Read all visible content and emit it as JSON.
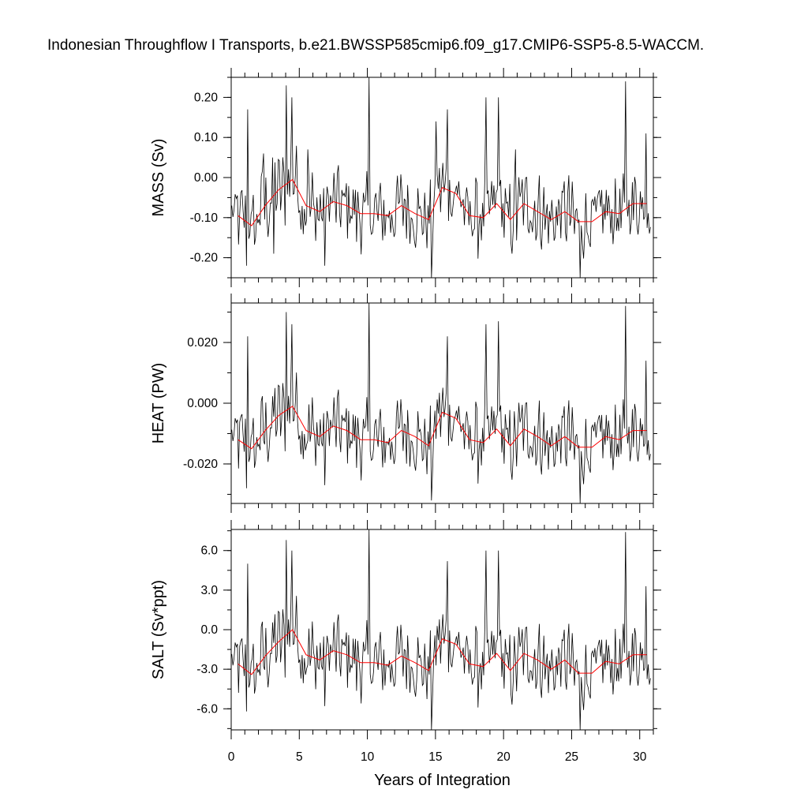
{
  "title": "Indonesian Throughflow I Transports, b.e21.BWSSP585cmip6.f09_g17.CMIP6-SSP5-8.5-WACCM.",
  "colors": {
    "monthly": "#000000",
    "annual": "#ff0000"
  },
  "chart_data": [
    {
      "type": "line",
      "ylabel": "MASS (Sv)",
      "xlabel": "",
      "xlim": [
        0,
        31
      ],
      "ylim": [
        -0.25,
        0.25
      ],
      "yticks": [
        0.2,
        0.1,
        0.0,
        -0.1,
        -0.2
      ],
      "ytick_labels": [
        "0.20",
        "0.10",
        "0.00",
        "-0.10",
        "-0.20"
      ],
      "xticks": [
        0,
        5,
        10,
        15,
        20,
        25,
        30
      ],
      "annual_mean": [
        -0.095,
        -0.12,
        -0.07,
        -0.03,
        -0.005,
        -0.07,
        -0.085,
        -0.06,
        -0.07,
        -0.09,
        -0.09,
        -0.095,
        -0.07,
        -0.09,
        -0.105,
        -0.025,
        -0.04,
        -0.095,
        -0.1,
        -0.065,
        -0.105,
        -0.065,
        -0.085,
        -0.105,
        -0.085,
        -0.11,
        -0.11,
        -0.085,
        -0.09,
        -0.065,
        -0.065
      ],
      "peaks": [
        [
          0.6,
          -0.09
        ],
        [
          1.2,
          0.17
        ],
        [
          2.3,
          0.06
        ],
        [
          3.0,
          0.05
        ],
        [
          4.0,
          0.23
        ],
        [
          4.4,
          0.2
        ],
        [
          5.6,
          0.07
        ],
        [
          10.1,
          0.26
        ],
        [
          15.0,
          0.14
        ],
        [
          15.8,
          0.17
        ],
        [
          18.7,
          0.2
        ],
        [
          19.6,
          0.2
        ],
        [
          20.8,
          0.07
        ],
        [
          28.9,
          0.24
        ],
        [
          30.4,
          0.11
        ]
      ],
      "troughs": [
        [
          1.1,
          -0.22
        ],
        [
          3.1,
          -0.19
        ],
        [
          6.8,
          -0.22
        ],
        [
          14.7,
          -0.26
        ],
        [
          25.6,
          -0.26
        ]
      ]
    },
    {
      "type": "line",
      "ylabel": "HEAT (PW)",
      "xlabel": "",
      "xlim": [
        0,
        31
      ],
      "ylim": [
        -0.033,
        0.033
      ],
      "yticks": [
        0.02,
        0.0,
        -0.02
      ],
      "ytick_labels": [
        "0.020",
        "0.000",
        "-0.020"
      ],
      "xticks": [
        0,
        5,
        10,
        15,
        20,
        25,
        30
      ],
      "annual_mean": [
        -0.012,
        -0.015,
        -0.009,
        -0.004,
        -0.001,
        -0.009,
        -0.011,
        -0.0075,
        -0.009,
        -0.012,
        -0.012,
        -0.013,
        -0.009,
        -0.011,
        -0.014,
        -0.003,
        -0.005,
        -0.012,
        -0.013,
        -0.0085,
        -0.014,
        -0.0085,
        -0.011,
        -0.014,
        -0.011,
        -0.0145,
        -0.0145,
        -0.011,
        -0.012,
        -0.009,
        -0.009
      ],
      "peaks": [
        [
          1.2,
          0.022
        ],
        [
          4.0,
          0.03
        ],
        [
          4.4,
          0.026
        ],
        [
          10.1,
          0.034
        ],
        [
          15.8,
          0.022
        ],
        [
          18.7,
          0.026
        ],
        [
          19.6,
          0.027
        ],
        [
          28.9,
          0.032
        ],
        [
          30.4,
          0.014
        ]
      ],
      "troughs": [
        [
          1.1,
          -0.028
        ],
        [
          6.8,
          -0.027
        ],
        [
          14.7,
          -0.032
        ],
        [
          25.6,
          -0.033
        ]
      ]
    },
    {
      "type": "line",
      "ylabel": "SALT (Sv*ppt)",
      "xlabel": "Years of Integration",
      "xlim": [
        0,
        31
      ],
      "ylim": [
        -7.6,
        7.6
      ],
      "yticks": [
        6.0,
        3.0,
        0.0,
        -3.0,
        -6.0
      ],
      "ytick_labels": [
        "6.0",
        "3.0",
        "0.0",
        "-3.0",
        "-6.0"
      ],
      "xticks": [
        0,
        5,
        10,
        15,
        20,
        25,
        30
      ],
      "xtick_labels": [
        "0",
        "5",
        "10",
        "15",
        "20",
        "25",
        "30"
      ],
      "annual_mean": [
        -2.6,
        -3.4,
        -2.0,
        -0.9,
        0.0,
        -1.9,
        -2.3,
        -1.6,
        -1.9,
        -2.5,
        -2.5,
        -2.7,
        -2.0,
        -2.5,
        -3.1,
        -0.7,
        -1.1,
        -2.6,
        -2.8,
        -1.8,
        -3.1,
        -1.8,
        -2.3,
        -3.0,
        -2.3,
        -3.3,
        -3.3,
        -2.4,
        -2.6,
        -1.9,
        -1.9
      ],
      "peaks": [
        [
          1.2,
          5.0
        ],
        [
          4.0,
          6.8
        ],
        [
          4.4,
          6.0
        ],
        [
          10.1,
          7.6
        ],
        [
          15.8,
          5.2
        ],
        [
          18.7,
          6.0
        ],
        [
          19.6,
          6.0
        ],
        [
          28.9,
          7.4
        ],
        [
          30.4,
          3.3
        ]
      ],
      "troughs": [
        [
          1.1,
          -6.2
        ],
        [
          6.8,
          -5.8
        ],
        [
          14.7,
          -7.6
        ],
        [
          25.6,
          -7.6
        ]
      ]
    }
  ]
}
